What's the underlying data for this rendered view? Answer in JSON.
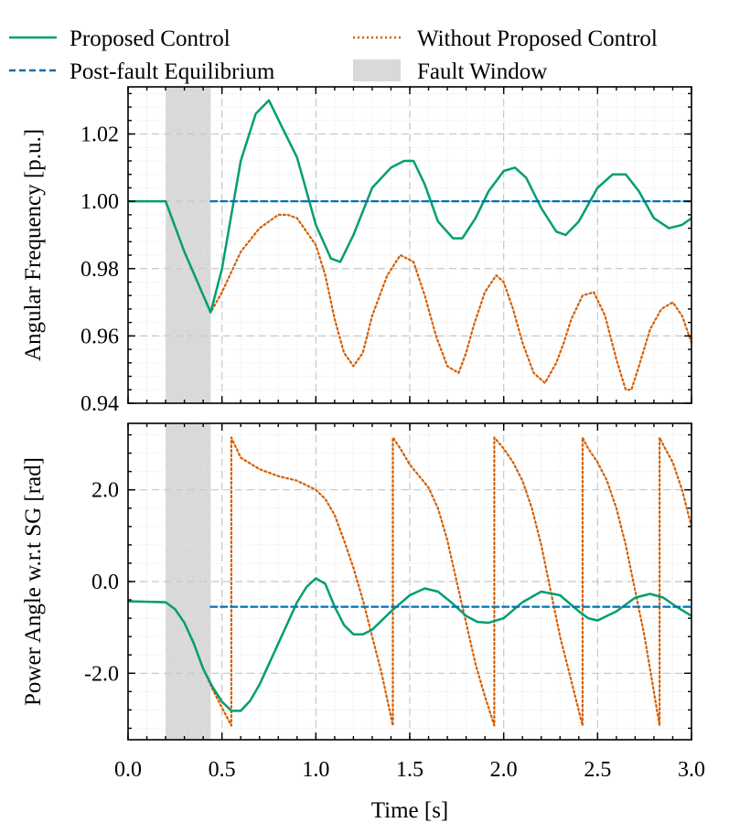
{
  "colors": {
    "proposed": "#009E73",
    "without": "#D55E00",
    "equilibrium": "#0072B2",
    "fault": "#d9d9d9",
    "grid": "#c8c8c8"
  },
  "legend": {
    "proposed": "Proposed Control",
    "without": "Without Proposed Control",
    "equilibrium": "Post-fault Equilibrium",
    "fault": "Fault Window"
  },
  "chart_data": [
    {
      "type": "line",
      "ylabel": "Angular Frequency [p.u.]",
      "xlabel": "",
      "xlim": [
        0,
        3
      ],
      "ylim": [
        0.94,
        1.034
      ],
      "yticks": [
        0.94,
        0.96,
        0.98,
        1.0,
        1.02
      ],
      "ytick_labels": [
        "0.94",
        "0.96",
        "0.98",
        "1.00",
        "1.02"
      ],
      "fault_window": [
        0.2,
        0.44
      ],
      "series": [
        {
          "name": "Proposed Control",
          "x": [
            0,
            0.2,
            0.3,
            0.44,
            0.5,
            0.6,
            0.68,
            0.75,
            0.82,
            0.9,
            0.95,
            1.0,
            1.08,
            1.13,
            1.2,
            1.3,
            1.4,
            1.47,
            1.52,
            1.58,
            1.65,
            1.73,
            1.78,
            1.85,
            1.92,
            2.0,
            2.06,
            2.12,
            2.2,
            2.28,
            2.33,
            2.4,
            2.5,
            2.58,
            2.65,
            2.72,
            2.8,
            2.88,
            2.95,
            3.0
          ],
          "y": [
            1.0,
            1.0,
            0.985,
            0.967,
            0.98,
            1.012,
            1.026,
            1.03,
            1.022,
            1.013,
            1.003,
            0.993,
            0.983,
            0.982,
            0.99,
            1.004,
            1.01,
            1.012,
            1.012,
            1.005,
            0.994,
            0.989,
            0.989,
            0.995,
            1.003,
            1.009,
            1.01,
            1.007,
            0.998,
            0.991,
            0.99,
            0.994,
            1.004,
            1.008,
            1.008,
            1.003,
            0.995,
            0.992,
            0.993,
            0.995
          ]
        },
        {
          "name": "Without Proposed Control",
          "x": [
            0,
            0.2,
            0.3,
            0.44,
            0.5,
            0.6,
            0.7,
            0.8,
            0.85,
            0.9,
            1.0,
            1.05,
            1.1,
            1.15,
            1.2,
            1.25,
            1.3,
            1.38,
            1.45,
            1.52,
            1.58,
            1.64,
            1.7,
            1.76,
            1.8,
            1.84,
            1.9,
            1.96,
            2.0,
            2.05,
            2.1,
            2.16,
            2.22,
            2.28,
            2.32,
            2.36,
            2.42,
            2.48,
            2.54,
            2.6,
            2.65,
            2.68,
            2.72,
            2.78,
            2.84,
            2.9,
            2.95,
            3.0
          ],
          "y": [
            1.0,
            1.0,
            0.985,
            0.967,
            0.973,
            0.985,
            0.992,
            0.996,
            0.996,
            0.995,
            0.987,
            0.978,
            0.965,
            0.955,
            0.951,
            0.955,
            0.966,
            0.978,
            0.984,
            0.982,
            0.972,
            0.96,
            0.951,
            0.949,
            0.955,
            0.963,
            0.973,
            0.978,
            0.976,
            0.968,
            0.958,
            0.949,
            0.946,
            0.952,
            0.958,
            0.965,
            0.972,
            0.973,
            0.966,
            0.953,
            0.944,
            0.944,
            0.951,
            0.962,
            0.968,
            0.97,
            0.966,
            0.958
          ]
        },
        {
          "name": "Post-fault Equilibrium",
          "x": [
            0.44,
            3.0
          ],
          "y": [
            1.0,
            1.0
          ]
        }
      ]
    },
    {
      "type": "line",
      "ylabel": "Power Angle w.r.t SG [rad]",
      "xlabel": "Time [s]",
      "xlim": [
        0,
        3
      ],
      "ylim": [
        -3.45,
        3.45
      ],
      "xticks": [
        0,
        0.5,
        1.0,
        1.5,
        2.0,
        2.5,
        3.0
      ],
      "xtick_labels": [
        "0.0",
        "0.5",
        "1.0",
        "1.5",
        "2.0",
        "2.5",
        "3.0"
      ],
      "yticks": [
        -2,
        0,
        2
      ],
      "ytick_labels": [
        "-2.0",
        "0.0",
        "2.0"
      ],
      "fault_window": [
        0.2,
        0.44
      ],
      "series": [
        {
          "name": "Proposed Control",
          "x": [
            0,
            0.2,
            0.25,
            0.3,
            0.35,
            0.4,
            0.45,
            0.5,
            0.55,
            0.6,
            0.65,
            0.7,
            0.8,
            0.9,
            0.95,
            1.0,
            1.05,
            1.1,
            1.15,
            1.2,
            1.25,
            1.3,
            1.4,
            1.5,
            1.58,
            1.65,
            1.72,
            1.8,
            1.86,
            1.92,
            2.0,
            2.1,
            2.2,
            2.3,
            2.4,
            2.45,
            2.5,
            2.6,
            2.7,
            2.78,
            2.85,
            2.92,
            3.0
          ],
          "y": [
            -0.43,
            -0.45,
            -0.6,
            -0.9,
            -1.35,
            -1.9,
            -2.3,
            -2.62,
            -2.82,
            -2.82,
            -2.6,
            -2.25,
            -1.35,
            -0.45,
            -0.12,
            0.07,
            -0.05,
            -0.55,
            -0.95,
            -1.15,
            -1.15,
            -1.05,
            -0.65,
            -0.3,
            -0.15,
            -0.22,
            -0.45,
            -0.75,
            -0.88,
            -0.9,
            -0.8,
            -0.45,
            -0.22,
            -0.3,
            -0.65,
            -0.8,
            -0.85,
            -0.65,
            -0.35,
            -0.27,
            -0.35,
            -0.55,
            -0.75
          ]
        },
        {
          "name": "Without Proposed Control",
          "x": [
            0,
            0.2,
            0.25,
            0.3,
            0.35,
            0.4,
            0.45,
            0.5,
            0.55,
            0.55,
            0.6,
            0.7,
            0.8,
            0.9,
            1.0,
            1.05,
            1.1,
            1.15,
            1.2,
            1.25,
            1.3,
            1.35,
            1.41,
            1.41,
            1.45,
            1.5,
            1.55,
            1.6,
            1.65,
            1.7,
            1.75,
            1.8,
            1.85,
            1.9,
            1.95,
            1.95,
            2.0,
            2.05,
            2.1,
            2.15,
            2.2,
            2.25,
            2.3,
            2.35,
            2.42,
            2.42,
            2.45,
            2.5,
            2.55,
            2.6,
            2.65,
            2.7,
            2.75,
            2.83,
            2.83,
            2.86,
            2.9,
            2.95,
            3.0
          ],
          "y": [
            -0.43,
            -0.45,
            -0.6,
            -0.9,
            -1.35,
            -1.9,
            -2.35,
            -2.75,
            -3.14,
            3.14,
            2.7,
            2.45,
            2.3,
            2.2,
            2.0,
            1.8,
            1.45,
            0.9,
            0.3,
            -0.4,
            -1.2,
            -2.0,
            -3.14,
            3.14,
            2.9,
            2.55,
            2.3,
            2.05,
            1.6,
            0.9,
            0.0,
            -0.9,
            -1.8,
            -2.5,
            -3.14,
            3.14,
            2.9,
            2.6,
            2.2,
            1.6,
            0.8,
            -0.2,
            -1.2,
            -2.0,
            -3.14,
            3.14,
            2.9,
            2.6,
            2.2,
            1.6,
            0.8,
            -0.2,
            -1.2,
            -3.14,
            3.14,
            2.9,
            2.6,
            2.0,
            1.2
          ]
        },
        {
          "name": "Post-fault Equilibrium",
          "x": [
            0.44,
            3.0
          ],
          "y": [
            -0.55,
            -0.55
          ]
        }
      ]
    }
  ]
}
